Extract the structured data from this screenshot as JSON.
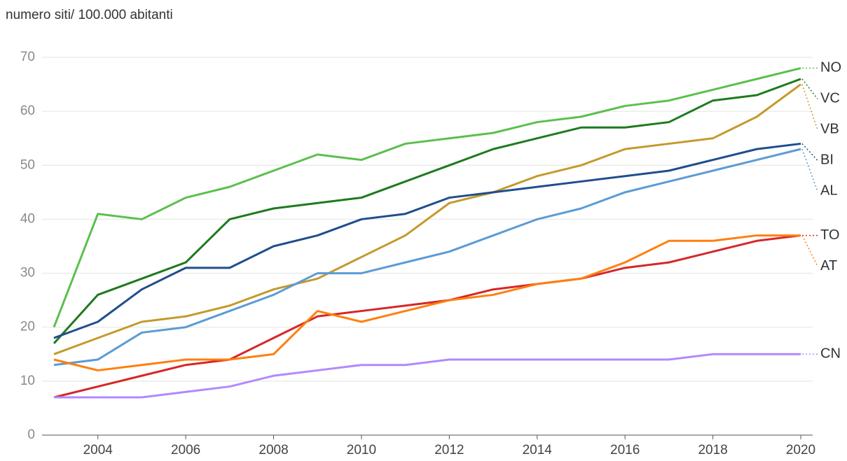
{
  "chart_data": {
    "type": "line",
    "title": "numero siti/ 100.000 abitanti",
    "x": [
      2003,
      2004,
      2005,
      2006,
      2007,
      2008,
      2009,
      2010,
      2011,
      2012,
      2013,
      2014,
      2015,
      2016,
      2017,
      2018,
      2019,
      2020
    ],
    "xlim": [
      2003,
      2020
    ],
    "xticks": [
      2004,
      2006,
      2008,
      2010,
      2012,
      2014,
      2016,
      2018,
      2020
    ],
    "ylim": [
      0,
      70
    ],
    "yticks": [
      0,
      10,
      20,
      30,
      40,
      50,
      60,
      70
    ],
    "grid": true,
    "series": [
      {
        "name": "NO",
        "color": "#5cbf4f",
        "values": [
          20,
          41,
          40,
          44,
          46,
          49,
          52,
          51,
          54,
          55,
          56,
          58,
          59,
          61,
          62,
          64,
          66,
          68
        ]
      },
      {
        "name": "VC",
        "color": "#1e7a1e",
        "values": [
          17,
          26,
          29,
          32,
          40,
          42,
          43,
          44,
          47,
          50,
          53,
          55,
          57,
          57,
          58,
          62,
          63,
          66
        ]
      },
      {
        "name": "VB",
        "color": "#c49a2c",
        "values": [
          15,
          18,
          21,
          22,
          24,
          27,
          29,
          33,
          37,
          43,
          45,
          48,
          50,
          53,
          54,
          55,
          59,
          65
        ]
      },
      {
        "name": "BI",
        "color": "#1f4e8c",
        "values": [
          18,
          21,
          27,
          31,
          31,
          35,
          37,
          40,
          41,
          44,
          45,
          46,
          47,
          48,
          49,
          51,
          53,
          54
        ]
      },
      {
        "name": "AL",
        "color": "#5b9bd5",
        "values": [
          13,
          14,
          19,
          20,
          23,
          26,
          30,
          30,
          32,
          34,
          37,
          40,
          42,
          45,
          47,
          49,
          51,
          53
        ]
      },
      {
        "name": "TO",
        "color": "#d62728",
        "values": [
          7,
          9,
          11,
          13,
          14,
          18,
          22,
          23,
          24,
          25,
          27,
          28,
          29,
          31,
          32,
          34,
          36,
          37
        ]
      },
      {
        "name": "AT",
        "color": "#ff7f0e",
        "values": [
          14,
          12,
          13,
          14,
          14,
          15,
          23,
          21,
          23,
          25,
          26,
          28,
          29,
          32,
          36,
          36,
          37,
          37
        ]
      },
      {
        "name": "CN",
        "color": "#b388ff",
        "values": [
          7,
          7,
          7,
          8,
          9,
          11,
          12,
          13,
          13,
          14,
          14,
          14,
          14,
          14,
          14,
          15,
          15,
          15
        ]
      }
    ]
  }
}
